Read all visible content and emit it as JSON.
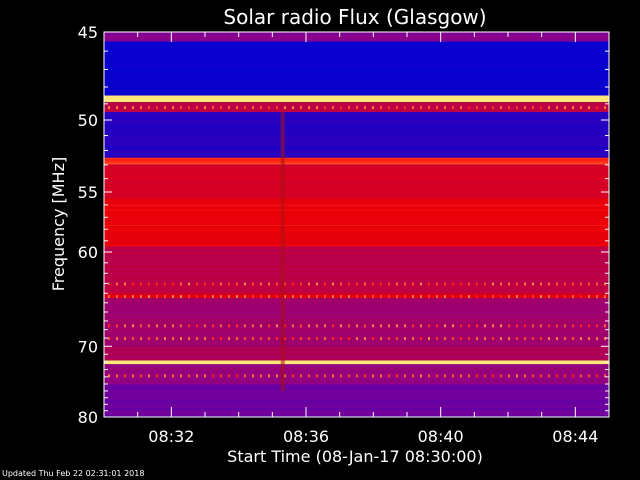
{
  "footer": {
    "updated": "Updated Thu Feb 22 02:31:01 2018"
  },
  "colors": {
    "background": "#000000",
    "axis": "#ffffff",
    "low": "#0000cc",
    "mid": "#cc0000",
    "high": "#ffe070"
  },
  "chart_data": {
    "type": "heatmap",
    "title": "Solar radio Flux (Glasgow)",
    "xlabel": "Start Time (08-Jan-17 08:30:00)",
    "ylabel": "Frequency [MHz]",
    "x_start": "08:30:00",
    "x_end": "08:45:00",
    "x_ticks": [
      "08:32",
      "08:36",
      "08:40",
      "08:44"
    ],
    "x_tick_minutes": [
      2,
      6,
      10,
      14
    ],
    "x_range_minutes": [
      0,
      15
    ],
    "y_ticks": [
      45,
      50,
      55,
      60,
      70,
      80
    ],
    "y_range": [
      45,
      80
    ],
    "y_scale": "reciprocal",
    "bands": [
      {
        "from": 45.0,
        "to": 45.5,
        "level": 0.35
      },
      {
        "from": 45.5,
        "to": 48.5,
        "level": 0.02
      },
      {
        "from": 48.5,
        "to": 48.9,
        "level": 1.0
      },
      {
        "from": 48.9,
        "to": 49.5,
        "level": 0.55
      },
      {
        "from": 49.5,
        "to": 52.5,
        "level": 0.1
      },
      {
        "from": 52.5,
        "to": 53.0,
        "level": 0.8
      },
      {
        "from": 53.0,
        "to": 55.5,
        "level": 0.65
      },
      {
        "from": 55.5,
        "to": 59.5,
        "level": 0.72
      },
      {
        "from": 59.5,
        "to": 64.0,
        "level": 0.55
      },
      {
        "from": 64.0,
        "to": 64.5,
        "level": 0.68
      },
      {
        "from": 64.5,
        "to": 70.0,
        "level": 0.45
      },
      {
        "from": 70.0,
        "to": 71.8,
        "level": 0.5
      },
      {
        "from": 71.8,
        "to": 72.3,
        "level": 1.0
      },
      {
        "from": 72.3,
        "to": 75.0,
        "level": 0.4
      },
      {
        "from": 75.0,
        "to": 80.0,
        "level": 0.28
      }
    ]
  }
}
